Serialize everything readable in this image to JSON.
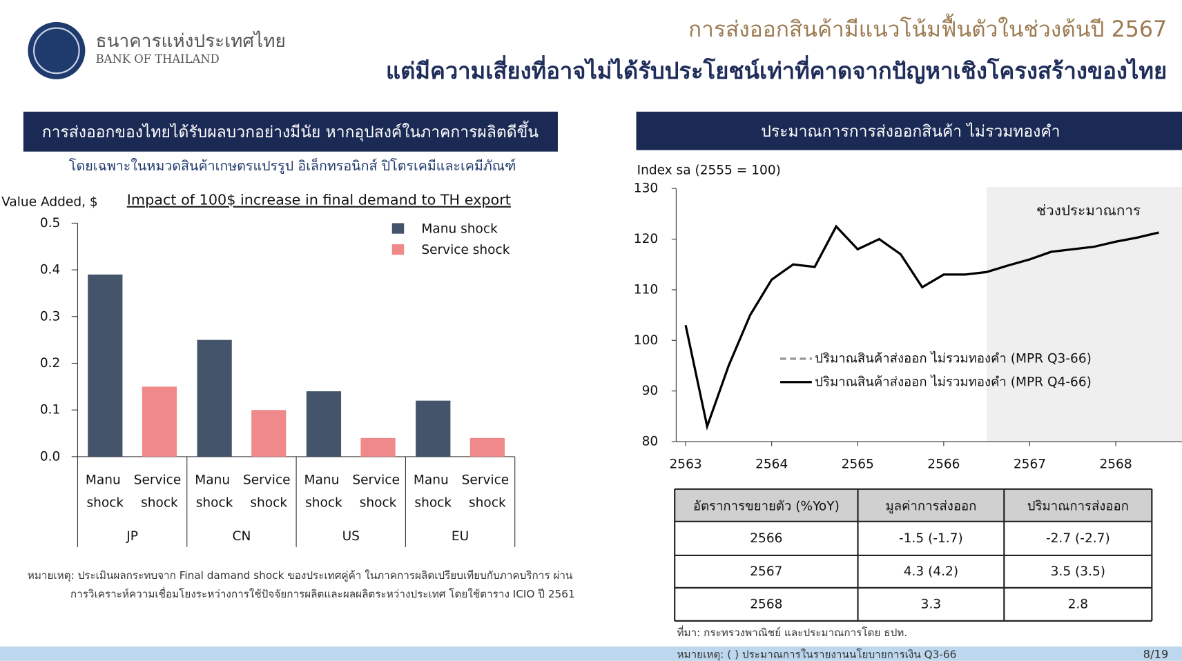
{
  "header": {
    "org_th": "ธนาคารแห่งประเทศไทย",
    "org_en": "BANK OF THAILAND",
    "title_1": "การส่งออกสินค้ามีแนวโน้มฟื้นตัวในช่วงต้นปี 2567",
    "title_2": "แต่มีความเสี่ยงที่อาจไม่ได้รับประโยชน์เท่าที่คาดจากปัญหาเชิงโครงสร้างของไทย"
  },
  "left_panel": {
    "heading": "การส่งออกของไทยได้รับผลบวกอย่างมีนัย หากอุปสงค์ในภาคการผลิตดีขึ้น",
    "subheading": "โดยเฉพาะในหมวดสินค้าเกษตรแปรรูป อิเล็กทรอนิกส์ ปิโตรเคมีและเคมีภัณฑ์",
    "note_1": "หมายเหตุ: ประเมินผลกระทบจาก Final damand shock ของประเทศคู่ค้า ในภาคการผลิตเปรียบเทียบกับภาคบริการ ผ่าน",
    "note_2": "การวิเคราะห์ความเชื่อมโยงระหว่างการใช้ปัจจัยการผลิตและผลผลิตระหว่างประเทศ โดยใช้ตาราง ICIO ปี 2561"
  },
  "right_panel": {
    "heading": "ประมาณการการส่งออกสินค้า ไม่รวมทองคำ",
    "source": "ที่มา: กระทรวงพาณิชย์ และประมาณการโดย ธปท.",
    "note": "หมายเหตุ: ( ) ประมาณการในรายงานนโยบายการเงิน Q3-66"
  },
  "page_number": "8/19",
  "chart_data": [
    {
      "type": "bar",
      "title": "Impact of 100$ increase in final demand to TH export",
      "y_label": "Value Added, $",
      "categories": [
        "JP",
        "CN",
        "US",
        "EU"
      ],
      "series": [
        {
          "name": "Manu shock",
          "color": "#44546a",
          "values": [
            0.39,
            0.25,
            0.14,
            0.12
          ]
        },
        {
          "name": "Service shock",
          "color": "#f08a8a",
          "values": [
            0.15,
            0.1,
            0.04,
            0.04
          ]
        }
      ],
      "ylim": [
        0,
        0.5
      ],
      "yticks": [
        {
          "value": 0,
          "label": "0.0"
        },
        0.1,
        0.2,
        0.3,
        0.4,
        0.5
      ],
      "legend": "top-right",
      "grid": false
    },
    {
      "type": "line",
      "y_label": "Index sa (2555 = 100)",
      "annotation": "ช่วงประมาณการ",
      "forecast_start": 2566.5,
      "x": [
        2563,
        2563.25,
        2563.5,
        2563.75,
        2564,
        2564.25,
        2564.5,
        2564.75,
        2565,
        2565.25,
        2565.5,
        2565.75,
        2566,
        2566.25,
        2566.5,
        2566.75,
        2567,
        2567.25,
        2567.5,
        2567.75,
        2568,
        2568.25,
        2568.5
      ],
      "series": [
        {
          "name": "ปริมาณสินค้าส่งออก ไม่รวมทองคำ (MPR Q3-66)",
          "color": "#999999",
          "dashed": true,
          "values": [
            null,
            null,
            null,
            null,
            null,
            null,
            null,
            null,
            null,
            null,
            null,
            null,
            null,
            null,
            null,
            null,
            null,
            null,
            null,
            null,
            null,
            null,
            null
          ]
        },
        {
          "name": "ปริมาณสินค้าส่งออก ไม่รวมทองคำ (MPR Q4-66)",
          "color": "#000000",
          "dashed": false,
          "values": [
            103,
            83,
            95,
            105,
            112,
            115,
            114.5,
            122.5,
            118,
            120,
            117,
            110.5,
            113,
            113,
            113.5,
            114.8,
            116,
            117.5,
            118,
            118.5,
            119.5,
            120.3,
            121.3
          ]
        }
      ],
      "xlim": [
        2562.89,
        2568.77
      ],
      "xticks": [
        2563,
        2564,
        2565,
        2566,
        2567,
        2568
      ],
      "ylim": [
        80,
        130
      ],
      "yticks": [
        80,
        90,
        100,
        110,
        120,
        130
      ],
      "grid": false
    }
  ],
  "table": {
    "header": [
      "อัตราการขยายตัว (%YoY)",
      "มูลค่าการส่งออก",
      "ปริมาณการส่งออก"
    ],
    "rows": [
      [
        "2566",
        "-1.5 (-1.7)",
        "-2.7 (-2.7)"
      ],
      [
        "2567",
        "4.3 (4.2)",
        "3.5 (3.5)"
      ],
      [
        "2568",
        "3.3",
        "2.8"
      ]
    ]
  }
}
